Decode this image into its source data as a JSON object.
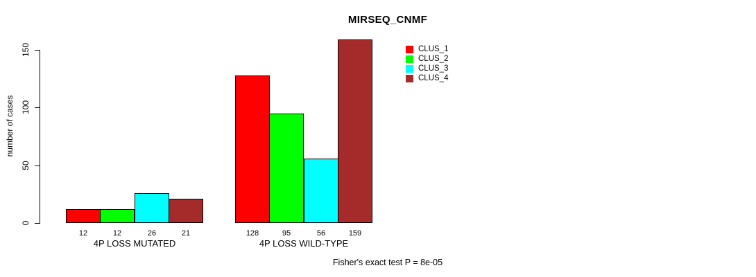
{
  "chart_data": {
    "type": "bar",
    "title": "MIRSEQ_CNMF",
    "ylabel": "number of cases",
    "xlabel": "",
    "categories": [
      "4P LOSS MUTATED",
      "4P LOSS WILD-TYPE"
    ],
    "series": [
      {
        "name": "CLUS_1",
        "color": "#FF0000",
        "values": [
          12,
          128
        ]
      },
      {
        "name": "CLUS_2",
        "color": "#00FF00",
        "values": [
          12,
          95
        ]
      },
      {
        "name": "CLUS_3",
        "color": "#00FFFF",
        "values": [
          26,
          56
        ]
      },
      {
        "name": "CLUS_4",
        "color": "#A52A2A",
        "values": [
          21,
          159
        ]
      }
    ],
    "yticks": [
      0,
      50,
      100,
      150
    ],
    "ylim": [
      0,
      150
    ],
    "bar_value_labels_shown": true,
    "grid": false,
    "legend_position": "top-right",
    "annotation": "Fisher's exact test P = 8e-05"
  }
}
